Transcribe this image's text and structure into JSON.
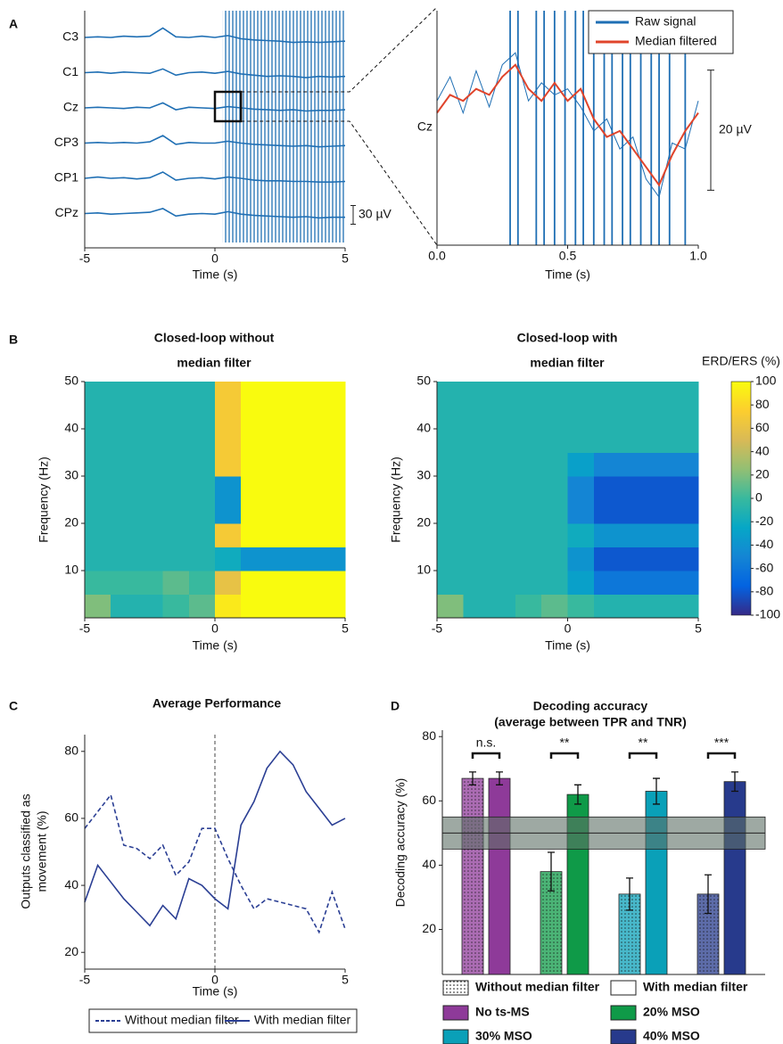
{
  "panel_labels": [
    "A",
    "B",
    "C",
    "D"
  ],
  "chart_data": [
    {
      "type": "traces",
      "xlabel": "Time (s)",
      "x": [
        -5,
        -4.5,
        -4,
        -3.5,
        -3,
        -2.5,
        -2,
        -1.5,
        -1,
        -0.5,
        0,
        0.5,
        1,
        1.5,
        2,
        2.5,
        3,
        3.5,
        4,
        4.5,
        5
      ],
      "xlim": [
        -5,
        5
      ],
      "xticks": [
        -5,
        0,
        5
      ],
      "series": [
        {
          "name": "C3",
          "color": "#1f6fb4",
          "values": [
            0,
            1,
            0,
            2,
            1,
            2,
            15,
            1,
            0,
            2,
            0,
            3,
            -2,
            -4,
            -5,
            -6,
            -8,
            -7,
            -8,
            -7,
            -6
          ]
        },
        {
          "name": "C1",
          "color": "#1f6fb4",
          "values": [
            0,
            1,
            -1,
            1,
            0,
            -1,
            6,
            -4,
            0,
            1,
            -1,
            2,
            -2,
            -4,
            -6,
            -5,
            -6,
            -8,
            -6,
            -7,
            -6
          ]
        },
        {
          "name": "Cz",
          "color": "#1f6fb4",
          "values": [
            0,
            1,
            0,
            -1,
            1,
            0,
            8,
            -3,
            1,
            0,
            -1,
            2,
            0,
            -2,
            -3,
            -4,
            -3,
            -5,
            -4,
            -4,
            -3
          ]
        },
        {
          "name": "CP3",
          "color": "#1f6fb4",
          "values": [
            0,
            1,
            0,
            1,
            0,
            2,
            12,
            -2,
            1,
            0,
            0,
            3,
            0,
            -2,
            -3,
            -4,
            -5,
            -4,
            -6,
            -5,
            -4
          ]
        },
        {
          "name": "CP1",
          "color": "#1f6fb4",
          "values": [
            0,
            2,
            0,
            1,
            -1,
            1,
            10,
            -3,
            0,
            1,
            -1,
            2,
            0,
            -3,
            -4,
            -4,
            -5,
            -5,
            -6,
            -6,
            -5
          ]
        },
        {
          "name": "CPz",
          "color": "#1f6fb4",
          "values": [
            0,
            1,
            -1,
            0,
            1,
            2,
            8,
            -4,
            -1,
            0,
            -1,
            3,
            -1,
            -3,
            -4,
            -5,
            -6,
            -5,
            -7,
            -6,
            -6
          ]
        }
      ],
      "artifact_range": [
        0.3,
        5
      ],
      "scale_bar": 30,
      "scale_bar_label": "30 µV"
    },
    {
      "type": "zoom",
      "channel": "Cz",
      "xlabel": "Time (s)",
      "x": [
        0,
        0.05,
        0.1,
        0.15,
        0.2,
        0.25,
        0.3,
        0.35,
        0.4,
        0.45,
        0.5,
        0.55,
        0.6,
        0.65,
        0.7,
        0.75,
        0.8,
        0.85,
        0.9,
        0.95,
        1
      ],
      "xlim": [
        0,
        1
      ],
      "xticks": [
        {
          "value": 0,
          "label": "0.0"
        },
        0.5,
        {
          "value": 1,
          "label": "1.0"
        }
      ],
      "ylim": [
        -22,
        17
      ],
      "series": [
        {
          "name": "Raw signal",
          "color": "#1f6fb4",
          "values": [
            2,
            6,
            0,
            7,
            1,
            8,
            10,
            2,
            5,
            3,
            4,
            1,
            -3,
            -1,
            -6,
            -4,
            -11,
            -14,
            -5,
            -6,
            2
          ]
        },
        {
          "name": "Median filtered",
          "color": "#e0442b",
          "values": [
            0,
            3,
            2,
            4,
            3,
            6,
            8,
            4,
            2,
            5,
            2,
            4,
            -1,
            -4,
            -3,
            -6,
            -9,
            -12,
            -7,
            -3,
            0
          ]
        }
      ],
      "artifact_x": [
        0.28,
        0.31,
        0.38,
        0.41,
        0.45,
        0.49,
        0.53,
        0.56,
        0.6,
        0.64,
        0.67,
        0.71,
        0.74,
        0.78,
        0.82,
        0.85,
        0.89,
        0.95
      ],
      "scale_bar": 20,
      "scale_bar_label": "20 µV",
      "legend": "upper right"
    },
    {
      "type": "heatmap",
      "title_lines": [
        "Closed-loop without",
        "median filter"
      ],
      "xlabel": "Time (s)",
      "ylabel": "Frequency (Hz)",
      "xbins": [
        -5,
        -4,
        -3,
        -2,
        -1,
        0,
        1,
        2,
        3,
        4,
        5
      ],
      "ybins": [
        0,
        5,
        10,
        15,
        20,
        25,
        30,
        35,
        40,
        45,
        50
      ],
      "xlim": [
        -5,
        5
      ],
      "ylim": [
        0,
        50
      ],
      "xticks": [
        -5,
        0,
        5
      ],
      "yticks": [
        10,
        20,
        30,
        40,
        50
      ],
      "colormap": "parula",
      "clim": [
        -100,
        100
      ],
      "values": [
        [
          20,
          -10,
          -10,
          0,
          10,
          90,
          100,
          100,
          100,
          100
        ],
        [
          0,
          0,
          0,
          10,
          0,
          60,
          100,
          100,
          100,
          100
        ],
        [
          -10,
          -10,
          -10,
          -10,
          -10,
          -20,
          -40,
          -40,
          -40,
          -40
        ],
        [
          -10,
          -10,
          -10,
          -10,
          -10,
          70,
          100,
          100,
          100,
          100
        ],
        [
          -10,
          -10,
          -10,
          -10,
          -10,
          -40,
          100,
          100,
          100,
          100
        ],
        [
          -10,
          -10,
          -10,
          -10,
          -10,
          -40,
          100,
          100,
          100,
          100
        ],
        [
          -10,
          -10,
          -10,
          -10,
          -10,
          70,
          100,
          100,
          100,
          100
        ],
        [
          -10,
          -10,
          -10,
          -10,
          -10,
          70,
          100,
          100,
          100,
          100
        ],
        [
          -10,
          -10,
          -10,
          -10,
          -10,
          70,
          100,
          100,
          100,
          100
        ],
        [
          -10,
          -10,
          -10,
          -10,
          -10,
          70,
          100,
          100,
          100,
          100
        ]
      ]
    },
    {
      "type": "heatmap",
      "title_lines": [
        "Closed-loop with",
        "median filter"
      ],
      "xlabel": "Time (s)",
      "ylabel": "Frequency (Hz)",
      "xbins": [
        -5,
        -4,
        -3,
        -2,
        -1,
        0,
        1,
        2,
        3,
        4,
        5
      ],
      "ybins": [
        0,
        5,
        10,
        15,
        20,
        25,
        30,
        35,
        40,
        45,
        50
      ],
      "xlim": [
        -5,
        5
      ],
      "ylim": [
        0,
        50
      ],
      "xticks": [
        -5,
        0,
        5
      ],
      "yticks": [
        10,
        20,
        30,
        40,
        50
      ],
      "colormap": "parula",
      "clim": [
        -100,
        100
      ],
      "values": [
        [
          20,
          -10,
          -10,
          0,
          10,
          0,
          -10,
          -10,
          -10,
          -10
        ],
        [
          -10,
          -10,
          -10,
          -10,
          -10,
          -30,
          -60,
          -60,
          -60,
          -60
        ],
        [
          -10,
          -10,
          -10,
          -10,
          -10,
          -40,
          -80,
          -80,
          -80,
          -80
        ],
        [
          -10,
          -10,
          -10,
          -10,
          -10,
          -20,
          -40,
          -40,
          -40,
          -40
        ],
        [
          -10,
          -10,
          -10,
          -10,
          -10,
          -50,
          -80,
          -80,
          -80,
          -80
        ],
        [
          -10,
          -10,
          -10,
          -10,
          -10,
          -50,
          -80,
          -80,
          -80,
          -80
        ],
        [
          -10,
          -10,
          -10,
          -10,
          -10,
          -30,
          -50,
          -50,
          -50,
          -50
        ],
        [
          -10,
          -10,
          -10,
          -10,
          -10,
          -10,
          -10,
          -10,
          -10,
          -10
        ],
        [
          -10,
          -10,
          -10,
          -10,
          -10,
          -10,
          -10,
          -10,
          -10,
          -10
        ],
        [
          -10,
          -10,
          -10,
          -10,
          -10,
          -10,
          -10,
          -10,
          -10,
          -10
        ]
      ]
    },
    {
      "type": "colorbar",
      "label": "ERD/ERS (%)",
      "colormap": "parula",
      "clim": [
        -100,
        100
      ],
      "ticks": [
        -100,
        -80,
        -60,
        -40,
        -20,
        0,
        20,
        40,
        60,
        80,
        100
      ]
    },
    {
      "type": "line",
      "title": "Average Performance",
      "xlabel": "Time (s)",
      "ylabel_lines": [
        "Outputs classified as",
        "movement (%)"
      ],
      "x": [
        -5,
        -4.5,
        -4,
        -3.5,
        -3,
        -2.5,
        -2,
        -1.5,
        -1,
        -0.5,
        0,
        0.5,
        1,
        1.5,
        2,
        2.5,
        3,
        3.5,
        4,
        4.5,
        5
      ],
      "xlim": [
        -5,
        5
      ],
      "xticks": [
        -5,
        0,
        5
      ],
      "ylim": [
        15,
        85
      ],
      "yticks": [
        20,
        40,
        60,
        80
      ],
      "vline": 0,
      "legend": "bottom",
      "series": [
        {
          "name": "Without median filter",
          "color": "#2b3f94",
          "dashed": true,
          "values": [
            57,
            62,
            67,
            52,
            51,
            48,
            52,
            43,
            47,
            57,
            57,
            48,
            40,
            33,
            36,
            35,
            34,
            33,
            26,
            38,
            27
          ]
        },
        {
          "name": "With median filter",
          "color": "#2b3f94",
          "dashed": false,
          "values": [
            35,
            46,
            41,
            36,
            32,
            28,
            34,
            30,
            42,
            40,
            36,
            33,
            58,
            65,
            75,
            80,
            76,
            68,
            63,
            58,
            60
          ]
        }
      ]
    },
    {
      "type": "grouped_bar",
      "title": "Decoding accuracy",
      "subtitle": "(average between TPR and TNR)",
      "ylabel": "Decoding accuracy (%)",
      "categories": [
        "No ts-MS",
        "20% MSO",
        "30% MSO",
        "40% MSO"
      ],
      "category_colors": [
        "#8e3a99",
        "#0f9a48",
        "#0aa0b8",
        "#273a8c"
      ],
      "ylim": [
        6,
        82
      ],
      "yticks": [
        20,
        40,
        60,
        80
      ],
      "series": [
        {
          "name": "Without median filter",
          "hatch": true,
          "values": [
            67,
            38,
            31,
            31
          ],
          "errors": [
            2,
            6,
            5,
            6
          ]
        },
        {
          "name": "With median filter",
          "hatch": false,
          "values": [
            67,
            62,
            63,
            66
          ],
          "errors": [
            2,
            3,
            4,
            3
          ]
        }
      ],
      "chance_band": [
        45,
        55
      ],
      "chance_level": 50,
      "significance": [
        "n.s.",
        "**",
        "**",
        "***"
      ]
    }
  ]
}
